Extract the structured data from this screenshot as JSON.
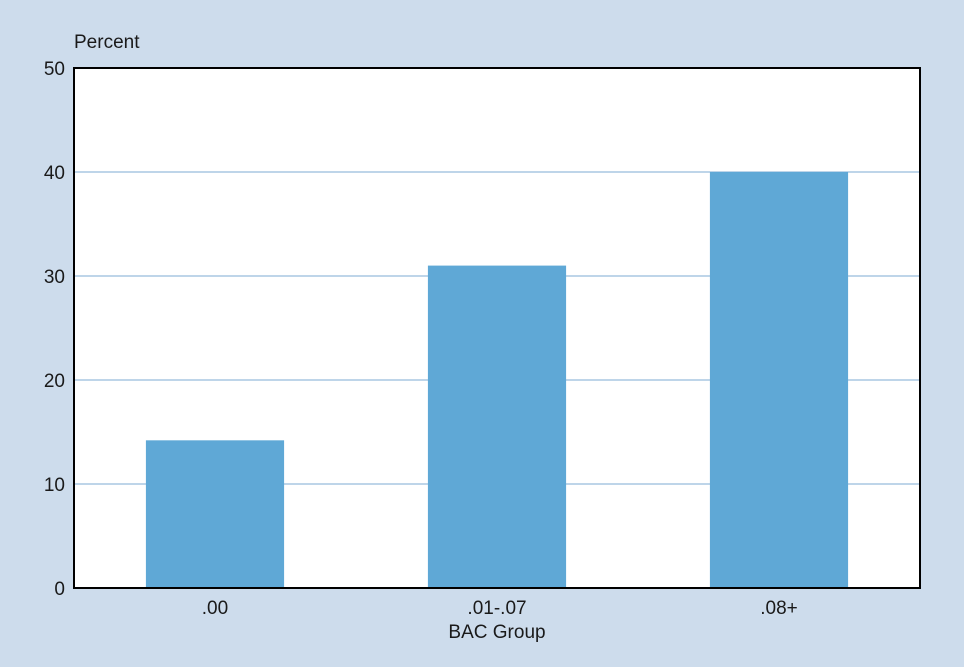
{
  "chart_data": {
    "type": "bar",
    "title": "",
    "xlabel": "BAC Group",
    "ylabel": "Percent",
    "categories": [
      ".00",
      ".01-.07",
      ".08+"
    ],
    "values": [
      14.2,
      31,
      40
    ],
    "ylim": [
      0,
      50
    ],
    "yticks": [
      0,
      10,
      20,
      30,
      40,
      50
    ],
    "grid": true,
    "legend": "none"
  },
  "colors": {
    "background": "#cddcec",
    "plot_background": "#ffffff",
    "bar": "#5fa8d6",
    "gridline": "#a9c7e2",
    "axis": "#000000"
  }
}
